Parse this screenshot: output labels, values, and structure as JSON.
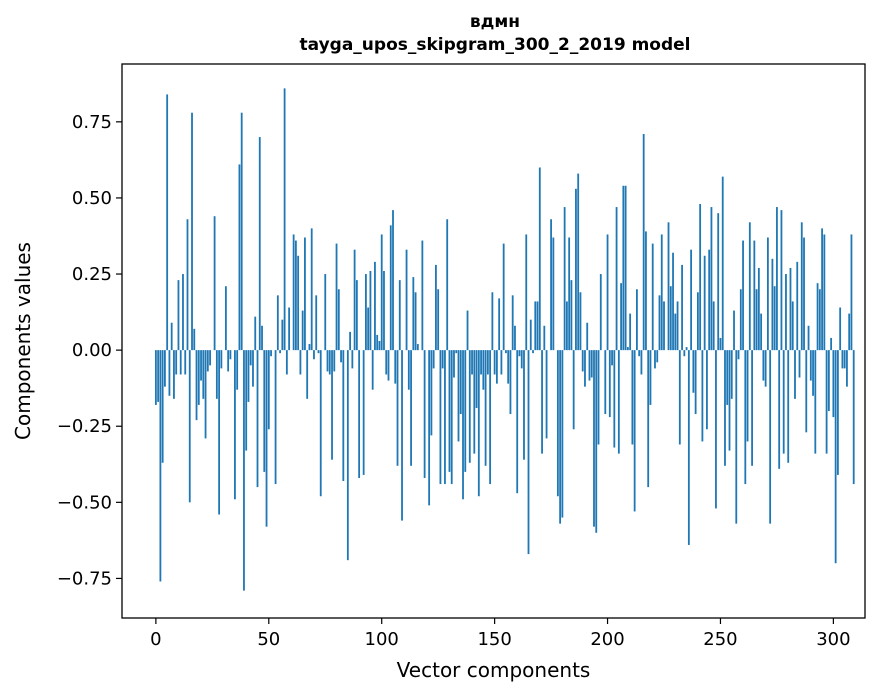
{
  "chart_data": {
    "type": "bar",
    "title": "вдмн",
    "subtitle": "tayga_upos_skipgram_300_2_2019 model",
    "xlabel": "Vector components",
    "ylabel": "Components values",
    "xlim": [
      -15,
      314
    ],
    "ylim": [
      -0.88,
      0.94
    ],
    "xticks": [
      0,
      50,
      100,
      150,
      200,
      250,
      300
    ],
    "yticks": [
      -0.75,
      -0.5,
      -0.25,
      0.0,
      0.25,
      0.5,
      0.75
    ],
    "xtick_labels": [
      "0",
      "50",
      "100",
      "150",
      "200",
      "250",
      "300"
    ],
    "ytick_labels": [
      "−0.75",
      "−0.50",
      "−0.25",
      "0.00",
      "0.25",
      "0.50",
      "0.75"
    ],
    "bar_color": "#1f77b4",
    "grid": false,
    "values": [
      -0.18,
      -0.17,
      -0.76,
      -0.37,
      -0.12,
      0.84,
      -0.15,
      0.09,
      -0.16,
      -0.08,
      0.23,
      -0.08,
      0.25,
      -0.08,
      0.43,
      -0.5,
      0.78,
      0.07,
      -0.23,
      -0.18,
      -0.1,
      -0.16,
      -0.29,
      -0.07,
      -0.05,
      0.0,
      0.44,
      -0.16,
      -0.54,
      -0.06,
      0.0,
      0.21,
      -0.07,
      -0.03,
      0.0,
      -0.49,
      -0.13,
      0.61,
      0.78,
      -0.79,
      -0.33,
      -0.17,
      -0.05,
      -0.12,
      0.11,
      -0.45,
      0.7,
      0.08,
      -0.4,
      -0.58,
      -0.26,
      -0.02,
      0.0,
      -0.44,
      0.18,
      -0.01,
      0.1,
      0.86,
      -0.08,
      0.14,
      0.0,
      0.38,
      0.36,
      0.31,
      -0.08,
      0.13,
      0.37,
      -0.16,
      0.02,
      0.4,
      -0.03,
      0.18,
      -0.01,
      -0.48,
      0.0,
      0.25,
      -0.07,
      -0.08,
      -0.36,
      -0.07,
      0.35,
      0.2,
      -0.04,
      -0.43,
      0.0,
      -0.69,
      0.06,
      -0.06,
      0.33,
      0.23,
      -0.42,
      0.0,
      -0.41,
      0.25,
      0.14,
      0.26,
      -0.13,
      0.29,
      0.05,
      0.03,
      0.38,
      0.26,
      -0.08,
      -0.1,
      0.41,
      0.46,
      -0.11,
      -0.38,
      0.23,
      -0.56,
      0.0,
      0.33,
      -0.13,
      -0.38,
      0.24,
      0.19,
      0.02,
      0.0,
      0.36,
      -0.42,
      0.0,
      -0.51,
      -0.28,
      -0.06,
      0.28,
      0.2,
      -0.44,
      -0.06,
      -0.44,
      0.43,
      -0.4,
      -0.44,
      -0.09,
      -0.01,
      -0.3,
      -0.21,
      -0.49,
      -0.4,
      0.13,
      -0.37,
      -0.08,
      -0.34,
      -0.19,
      -0.48,
      -0.08,
      -0.13,
      -0.38,
      -0.08,
      -0.44,
      0.19,
      -0.08,
      -0.11,
      0.17,
      -0.08,
      0.35,
      -0.01,
      -0.11,
      -0.21,
      0.18,
      0.08,
      -0.47,
      -0.02,
      -0.06,
      -0.36,
      0.38,
      -0.67,
      0.1,
      -0.01,
      0.16,
      0.16,
      0.6,
      -0.34,
      0.08,
      -0.29,
      0.0,
      0.43,
      0.37,
      0.0,
      -0.48,
      -0.57,
      -0.55,
      0.47,
      0.16,
      0.37,
      0.23,
      -0.26,
      0.53,
      0.58,
      0.19,
      -0.07,
      -0.12,
      0.09,
      -0.1,
      -0.09,
      -0.58,
      -0.6,
      -0.31,
      0.25,
      0.0,
      -0.21,
      0.38,
      -0.22,
      -0.05,
      -0.32,
      0.47,
      -0.34,
      0.22,
      0.54,
      0.54,
      0.01,
      0.12,
      -0.31,
      -0.53,
      0.2,
      -0.02,
      -0.08,
      0.71,
      0.39,
      -0.45,
      -0.18,
      0.35,
      -0.06,
      -0.04,
      0.18,
      0.38,
      0.16,
      0.0,
      0.42,
      0.21,
      0.32,
      0.12,
      0.16,
      -0.31,
      0.28,
      -0.02,
      0.01,
      -0.64,
      0.33,
      -0.14,
      -0.21,
      0.19,
      0.48,
      -0.3,
      0.31,
      -0.26,
      0.33,
      0.47,
      0.16,
      -0.52,
      0.45,
      0.04,
      0.57,
      -0.38,
      -0.18,
      -0.33,
      -0.16,
      0.13,
      -0.57,
      -0.03,
      0.2,
      0.36,
      -0.44,
      -0.3,
      0.42,
      -0.38,
      0.36,
      0.2,
      0.27,
      0.12,
      -0.1,
      -0.12,
      0.37,
      -0.57,
      0.3,
      0.21,
      0.47,
      -0.39,
      0.46,
      -0.34,
      0.25,
      -0.37,
      0.27,
      0.16,
      -0.16,
      0.29,
      -0.09,
      0.42,
      0.37,
      -0.27,
      0.08,
      -0.1,
      -0.15,
      -0.34,
      0.22,
      0.2,
      0.4,
      0.38,
      -0.34,
      -0.2,
      0.04,
      -0.22,
      -0.7,
      -0.41,
      0.14,
      -0.06,
      -0.06,
      -0.12,
      0.12,
      0.38,
      -0.44
    ]
  }
}
